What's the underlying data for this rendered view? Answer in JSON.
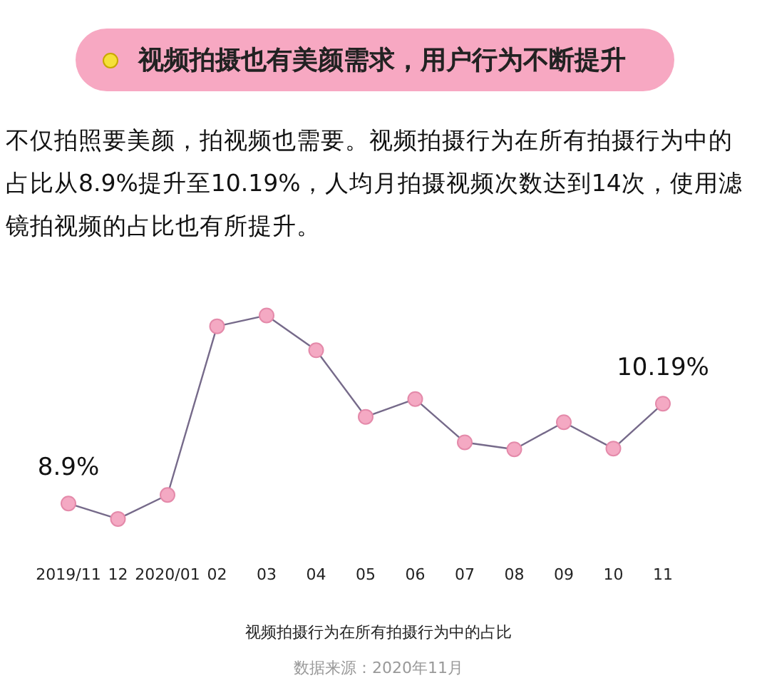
{
  "chart_data": {
    "type": "line",
    "title": "视频拍摄也有美颜需求，用户行为不断提升",
    "subtitle": "不仅拍照要美颜，拍视频也需要。视频拍摄行为在所有拍摄行为中的占比从8.9%提升至10.19%，人均月拍摄视频次数达到14次，使用滤镜拍视频的占比也有所提升。",
    "xlabel": "视频拍摄行为在所有拍摄行为中的占比",
    "annotations": [
      "数据来源：2020年11月"
    ],
    "categories": [
      "2019/11",
      "12",
      "2020/01",
      "02",
      "03",
      "04",
      "05",
      "06",
      "07",
      "08",
      "09",
      "10",
      "11"
    ],
    "series": [
      {
        "color": "#766a8a",
        "values": [
          8.9,
          8.7,
          9.01,
          11.19,
          11.33,
          10.88,
          10.02,
          10.25,
          9.69,
          9.6,
          9.95,
          9.61,
          10.19
        ],
        "value_labels": [
          "8.9%",
          null,
          null,
          null,
          null,
          null,
          null,
          null,
          null,
          null,
          null,
          null,
          "10.19%"
        ]
      }
    ],
    "marker": "circle",
    "grid": false,
    "legend": false
  }
}
